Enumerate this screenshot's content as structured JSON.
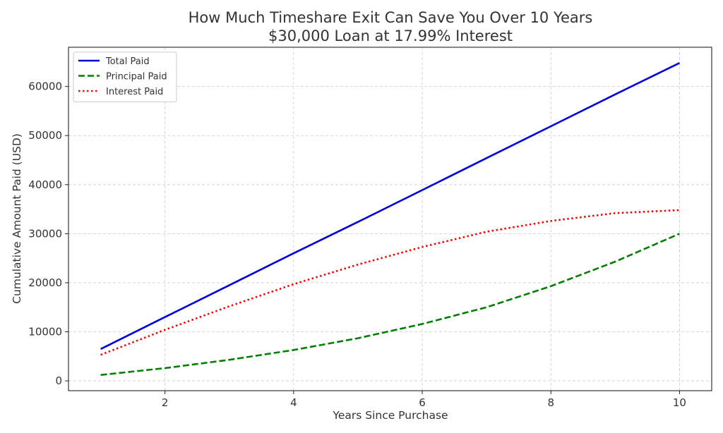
{
  "chart_data": {
    "type": "line",
    "title": "How Much Timeshare Exit Can Save You Over 10 Years",
    "subtitle": "$30,000 Loan at 17.99% Interest",
    "xlabel": "Years Since Purchase",
    "ylabel": "Cumulative Amount Paid (USD)",
    "xlim": [
      0.5,
      10.5
    ],
    "ylim": [
      -2000,
      68000
    ],
    "x_ticks": [
      2,
      4,
      6,
      8,
      10
    ],
    "y_ticks": [
      0,
      10000,
      20000,
      30000,
      40000,
      50000,
      60000
    ],
    "grid": true,
    "legend_position": "top-left",
    "x": [
      1,
      2,
      3,
      4,
      5,
      6,
      7,
      8,
      9,
      10
    ],
    "series": [
      {
        "name": "Total Paid",
        "color": "#0000dd",
        "style": "solid",
        "values": [
          6500,
          13000,
          19500,
          26000,
          32400,
          38900,
          45400,
          51900,
          58400,
          64800
        ]
      },
      {
        "name": "Principal Paid",
        "color": "#008000",
        "style": "dashed",
        "values": [
          1200,
          2600,
          4300,
          6300,
          8700,
          11600,
          15000,
          19300,
          24300,
          30000
        ]
      },
      {
        "name": "Interest Paid",
        "color": "#ff0000",
        "style": "dotted",
        "values": [
          5300,
          10400,
          15200,
          19700,
          23700,
          27300,
          30400,
          32600,
          34200,
          34800
        ]
      }
    ]
  }
}
